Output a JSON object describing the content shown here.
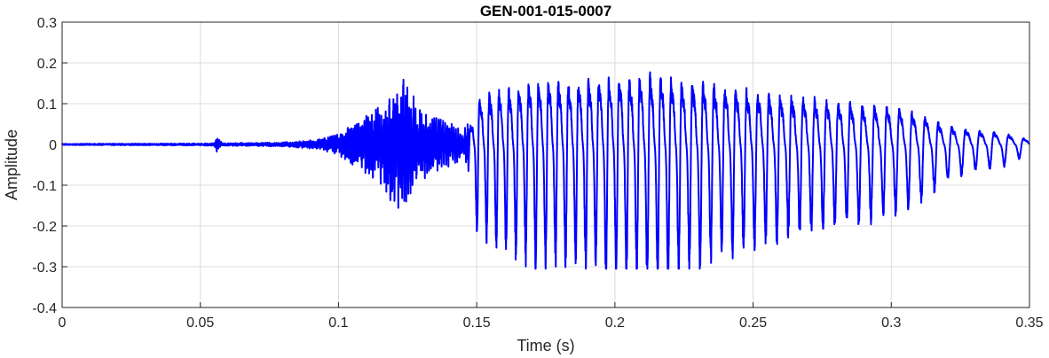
{
  "chart_data": {
    "type": "line",
    "title": "GEN-001-015-0007",
    "xlabel": "Time (s)",
    "ylabel": "Amplitude",
    "xlim": [
      0,
      0.35
    ],
    "ylim": [
      -0.4,
      0.3
    ],
    "xticks": [
      0,
      0.05,
      0.1,
      0.15,
      0.2,
      0.25,
      0.3,
      0.35
    ],
    "xtick_labels": [
      "0",
      "0.05",
      "0.1",
      "0.15",
      "0.2",
      "0.25",
      "0.3",
      "0.35"
    ],
    "yticks": [
      -0.4,
      -0.3,
      -0.2,
      -0.1,
      0,
      0.1,
      0.2,
      0.3
    ],
    "ytick_labels": [
      "-0.4",
      "-0.3",
      "-0.2",
      "-0.1",
      "0",
      "0.1",
      "0.2",
      "0.3"
    ],
    "grid": true,
    "line_color": "#0000ff",
    "series": [
      {
        "envelope": [
          [
            0.0,
            0.002
          ],
          [
            0.05,
            0.003
          ],
          [
            0.055,
            0.004
          ],
          [
            0.056,
            0.022
          ],
          [
            0.058,
            0.004
          ],
          [
            0.08,
            0.006
          ],
          [
            0.09,
            0.012
          ],
          [
            0.1,
            0.03
          ],
          [
            0.105,
            0.06
          ],
          [
            0.11,
            0.085
          ],
          [
            0.115,
            0.12
          ],
          [
            0.12,
            0.17
          ],
          [
            0.123,
            0.19
          ],
          [
            0.127,
            0.15
          ],
          [
            0.13,
            0.1
          ],
          [
            0.14,
            0.06
          ],
          [
            0.145,
            0.04
          ],
          [
            0.148,
            0.09
          ],
          [
            0.15,
            0.2
          ],
          [
            0.155,
            0.22
          ],
          [
            0.165,
            0.25
          ],
          [
            0.175,
            0.28
          ],
          [
            0.185,
            0.27
          ],
          [
            0.2,
            0.29
          ],
          [
            0.215,
            0.3
          ],
          [
            0.225,
            0.28
          ],
          [
            0.24,
            0.25
          ],
          [
            0.255,
            0.22
          ],
          [
            0.27,
            0.2
          ],
          [
            0.285,
            0.18
          ],
          [
            0.3,
            0.16
          ],
          [
            0.31,
            0.13
          ],
          [
            0.32,
            0.08
          ],
          [
            0.33,
            0.06
          ],
          [
            0.34,
            0.05
          ],
          [
            0.35,
            0.02
          ]
        ],
        "period": [
          [
            0.0,
            0.002
          ],
          [
            0.1,
            0.002
          ],
          [
            0.145,
            0.0025
          ],
          [
            0.15,
            0.0035
          ],
          [
            0.2,
            0.0037
          ],
          [
            0.25,
            0.004
          ],
          [
            0.3,
            0.0045
          ],
          [
            0.35,
            0.0055
          ]
        ]
      }
    ]
  }
}
